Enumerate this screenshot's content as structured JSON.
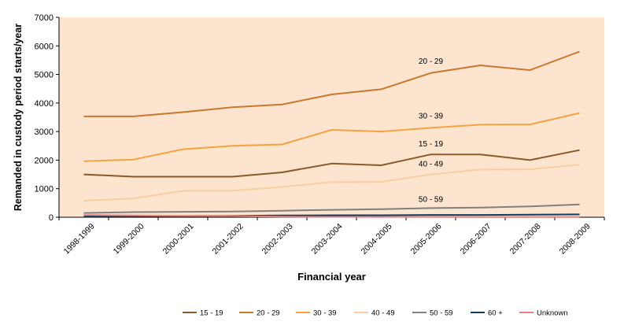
{
  "chart_data": {
    "type": "line",
    "title": "",
    "xlabel": "Financial year",
    "ylabel": "Remanded in custody period starts/year",
    "ylim": [
      0,
      7000
    ],
    "yticks": [
      0,
      1000,
      2000,
      3000,
      4000,
      5000,
      6000,
      7000
    ],
    "grid": false,
    "legend_position": "bottom",
    "categories": [
      "1998-1999",
      "1999-2000",
      "2000-2001",
      "2001-2002",
      "2002-2003",
      "2003-2004",
      "2004-2005",
      "2005-2006",
      "2006-2007",
      "2007-2008",
      "2008-2009"
    ],
    "series": [
      {
        "name": "15 - 19",
        "color": "#8B5A2B",
        "label": "15 - 19",
        "values": [
          1500,
          1420,
          1420,
          1420,
          1570,
          1880,
          1820,
          2200,
          2200,
          2000,
          2350
        ]
      },
      {
        "name": "20 - 29",
        "color": "#C8792E",
        "label": "20 - 29",
        "values": [
          3530,
          3530,
          3680,
          3850,
          3950,
          4300,
          4480,
          5050,
          5320,
          5150,
          5800
        ]
      },
      {
        "name": "30 - 39",
        "color": "#F5A340",
        "label": "30 - 39",
        "values": [
          1960,
          2020,
          2380,
          2500,
          2550,
          3060,
          3000,
          3130,
          3240,
          3250,
          3650
        ]
      },
      {
        "name": "40 - 49",
        "color": "#F8CFA0",
        "label": "40 - 49",
        "values": [
          580,
          660,
          920,
          930,
          1060,
          1230,
          1240,
          1500,
          1670,
          1680,
          1840
        ]
      },
      {
        "name": "50 - 59",
        "color": "#808080",
        "label": "50 - 59",
        "values": [
          150,
          180,
          190,
          200,
          230,
          260,
          280,
          320,
          340,
          380,
          450
        ]
      },
      {
        "name": "60 +",
        "color": "#0D3B66",
        "label": "",
        "values": [
          30,
          40,
          40,
          50,
          60,
          70,
          70,
          80,
          80,
          90,
          100
        ]
      },
      {
        "name": "Unknown",
        "color": "#E88080",
        "label": "",
        "values": [
          80,
          60,
          50,
          40,
          20,
          15,
          10,
          10,
          5,
          5,
          5
        ]
      }
    ]
  }
}
